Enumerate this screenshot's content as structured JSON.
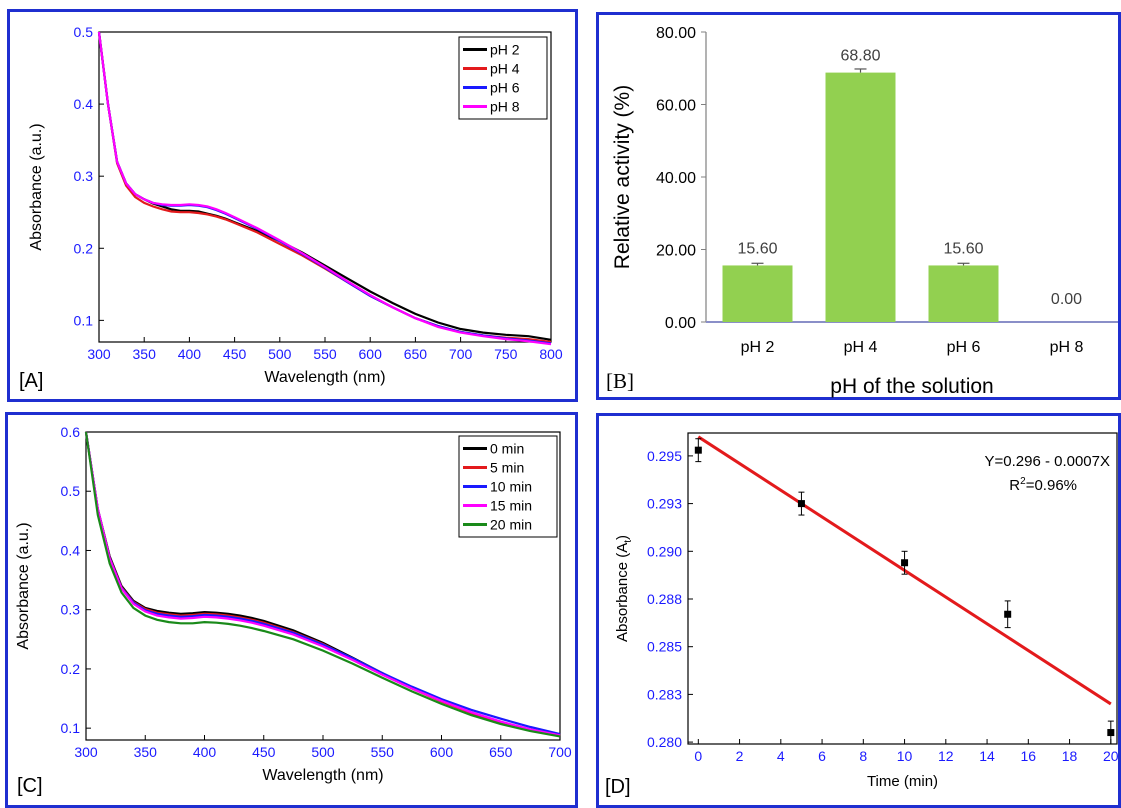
{
  "colors": {
    "frame": "#1f2fd0",
    "tick_blue": "#1a1aff",
    "bar_green": "#92d050",
    "fit_red": "#e31a1c"
  },
  "panels": {
    "A": {
      "label": "[A]",
      "chart_data": {
        "type": "line",
        "xlabel": "Wavelength (nm)",
        "ylabel": "Absorbance (a.u.)",
        "xlim": [
          300,
          800
        ],
        "ylim": [
          0.07,
          0.5
        ],
        "xticks": [
          300,
          350,
          400,
          450,
          500,
          550,
          600,
          650,
          700,
          750,
          800
        ],
        "yticks": [
          0.1,
          0.2,
          0.3,
          0.4,
          0.5
        ],
        "legend_position": "top-right",
        "x": [
          300,
          310,
          320,
          330,
          340,
          350,
          360,
          370,
          380,
          390,
          400,
          410,
          420,
          430,
          440,
          450,
          475,
          500,
          525,
          550,
          575,
          600,
          625,
          650,
          675,
          700,
          725,
          750,
          775,
          800
        ],
        "series": [
          {
            "name": "pH 2",
            "color": "#000000",
            "values": [
              0.5,
              0.4,
              0.32,
              0.29,
              0.275,
              0.268,
              0.262,
              0.258,
              0.254,
              0.252,
              0.252,
              0.251,
              0.248,
              0.245,
              0.241,
              0.236,
              0.224,
              0.21,
              0.194,
              0.176,
              0.158,
              0.14,
              0.124,
              0.109,
              0.097,
              0.088,
              0.083,
              0.08,
              0.078,
              0.073
            ]
          },
          {
            "name": "pH 4",
            "color": "#e31a1c",
            "values": [
              0.5,
              0.4,
              0.318,
              0.287,
              0.271,
              0.263,
              0.258,
              0.254,
              0.251,
              0.25,
              0.25,
              0.249,
              0.247,
              0.244,
              0.24,
              0.235,
              0.222,
              0.206,
              0.19,
              0.172,
              0.153,
              0.134,
              0.118,
              0.103,
              0.092,
              0.084,
              0.079,
              0.076,
              0.074,
              0.07
            ]
          },
          {
            "name": "pH 6",
            "color": "#1a1aff",
            "values": [
              0.5,
              0.4,
              0.32,
              0.29,
              0.275,
              0.268,
              0.263,
              0.26,
              0.259,
              0.259,
              0.26,
              0.259,
              0.257,
              0.253,
              0.248,
              0.242,
              0.227,
              0.21,
              0.192,
              0.173,
              0.153,
              0.134,
              0.118,
              0.103,
              0.092,
              0.084,
              0.079,
              0.075,
              0.072,
              0.068
            ]
          },
          {
            "name": "pH 8",
            "color": "#ff00ff",
            "values": [
              0.5,
              0.4,
              0.32,
              0.29,
              0.275,
              0.268,
              0.263,
              0.261,
              0.26,
              0.26,
              0.261,
              0.26,
              0.258,
              0.254,
              0.249,
              0.243,
              0.228,
              0.211,
              0.193,
              0.174,
              0.154,
              0.135,
              0.118,
              0.103,
              0.091,
              0.083,
              0.078,
              0.074,
              0.071,
              0.067
            ]
          }
        ]
      }
    },
    "B": {
      "label": "[B]",
      "chart_data": {
        "type": "bar",
        "xlabel": "pH of the solution",
        "ylabel": "Relative activity (%)",
        "ylim": [
          0,
          80
        ],
        "yticks": [
          "0.00",
          "20.00",
          "40.00",
          "60.00",
          "80.00"
        ],
        "categories": [
          "pH 2",
          "pH 4",
          "pH 6",
          "pH 8"
        ],
        "values": [
          15.6,
          68.8,
          15.6,
          0
        ],
        "errors": [
          0.6,
          1.0,
          0.6,
          0
        ],
        "data_labels": [
          "15.60",
          "68.80",
          "15.60",
          "0.00"
        ]
      }
    },
    "C": {
      "label": "[C]",
      "chart_data": {
        "type": "line",
        "xlabel": "Wavelength (nm)",
        "ylabel": "Absorbance (a.u.)",
        "xlim": [
          300,
          700
        ],
        "ylim": [
          0.08,
          0.6
        ],
        "xticks": [
          300,
          350,
          400,
          450,
          500,
          550,
          600,
          650,
          700
        ],
        "yticks": [
          0.1,
          0.2,
          0.3,
          0.4,
          0.5,
          0.6
        ],
        "legend_position": "top-right",
        "x": [
          300,
          310,
          320,
          330,
          340,
          350,
          360,
          370,
          380,
          390,
          400,
          410,
          420,
          430,
          440,
          450,
          475,
          500,
          525,
          550,
          575,
          600,
          625,
          650,
          675,
          700
        ],
        "series": [
          {
            "name": "0 min",
            "color": "#000000",
            "values": [
              0.6,
              0.47,
              0.39,
              0.34,
              0.315,
              0.303,
              0.298,
              0.295,
              0.293,
              0.294,
              0.296,
              0.295,
              0.293,
              0.29,
              0.286,
              0.281,
              0.265,
              0.244,
              0.219,
              0.193,
              0.168,
              0.146,
              0.126,
              0.11,
              0.097,
              0.088
            ]
          },
          {
            "name": "5 min",
            "color": "#e31a1c",
            "values": [
              0.6,
              0.47,
              0.388,
              0.338,
              0.313,
              0.301,
              0.295,
              0.292,
              0.29,
              0.291,
              0.293,
              0.292,
              0.29,
              0.287,
              0.283,
              0.278,
              0.262,
              0.242,
              0.217,
              0.191,
              0.167,
              0.145,
              0.126,
              0.11,
              0.097,
              0.087
            ]
          },
          {
            "name": "10 min",
            "color": "#1a1aff",
            "values": [
              0.6,
              0.47,
              0.387,
              0.337,
              0.312,
              0.299,
              0.293,
              0.29,
              0.288,
              0.289,
              0.291,
              0.29,
              0.288,
              0.285,
              0.281,
              0.276,
              0.261,
              0.241,
              0.218,
              0.193,
              0.17,
              0.149,
              0.131,
              0.116,
              0.102,
              0.09
            ]
          },
          {
            "name": "15 min",
            "color": "#ff00ff",
            "values": [
              0.6,
              0.47,
              0.386,
              0.336,
              0.31,
              0.297,
              0.29,
              0.287,
              0.285,
              0.286,
              0.288,
              0.287,
              0.285,
              0.282,
              0.278,
              0.273,
              0.258,
              0.238,
              0.215,
              0.19,
              0.167,
              0.146,
              0.127,
              0.111,
              0.098,
              0.088
            ]
          },
          {
            "name": "20 min",
            "color": "#1a8a1a",
            "values": [
              0.6,
              0.46,
              0.378,
              0.329,
              0.303,
              0.29,
              0.283,
              0.279,
              0.277,
              0.277,
              0.279,
              0.278,
              0.276,
              0.273,
              0.269,
              0.264,
              0.25,
              0.231,
              0.209,
              0.185,
              0.162,
              0.141,
              0.122,
              0.107,
              0.095,
              0.086
            ]
          }
        ]
      }
    },
    "D": {
      "label": "[D]",
      "chart_data": {
        "type": "scatter",
        "xlabel": "Time (min)",
        "ylabel": "Absorbance (A",
        "ylabel_sub": "t",
        "ylabel_end": ")",
        "xlim": [
          -0.5,
          20.3
        ],
        "ylim": [
          0.2799,
          0.2962
        ],
        "xticks": [
          0,
          2,
          4,
          6,
          8,
          10,
          12,
          14,
          16,
          18,
          20
        ],
        "yticks": [
          0.28,
          0.2825,
          0.285,
          0.2875,
          0.29,
          0.2925,
          0.295
        ],
        "ytick_labels": [
          "0.280",
          "0.283",
          "0.285",
          "0.288",
          "0.290",
          "0.293",
          "0.295"
        ],
        "x": [
          0,
          5,
          10,
          15,
          20
        ],
        "y": [
          0.2953,
          0.2925,
          0.2894,
          0.2867,
          0.2805
        ],
        "errors": [
          0.0006,
          0.0006,
          0.0006,
          0.0007,
          0.0006
        ],
        "fit": {
          "intercept": 0.296,
          "slope": -0.0007,
          "color": "#e31a1c",
          "x_range": [
            0,
            20
          ]
        },
        "equation_text": "Y=0.296 - 0.0007X",
        "r2_label": "R",
        "r2_sup": "2",
        "r2_value": "=0.96%"
      }
    }
  }
}
